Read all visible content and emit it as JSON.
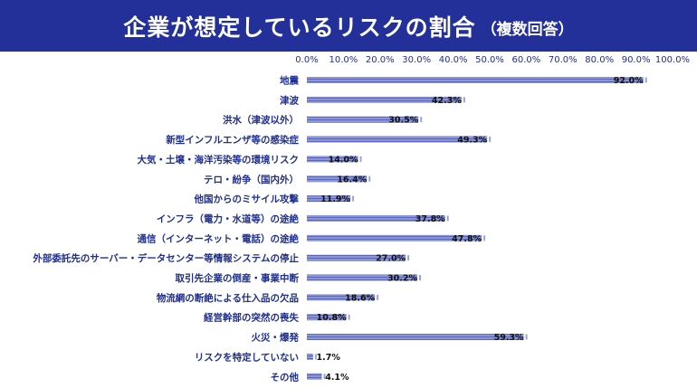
{
  "header": {
    "title": "企業が想定しているリスクの割合",
    "subtitle": "（複数回答）"
  },
  "colors": {
    "banner": "#23309a",
    "bar_fill": "#8a96d9",
    "bar_stripe": "#5b66b8",
    "text": "#1f2f8f"
  },
  "chart_data": {
    "type": "bar",
    "orientation": "horizontal",
    "title": "企業が想定しているリスクの割合",
    "subtitle": "（複数回答）",
    "xlim": [
      0,
      100
    ],
    "x_ticks": [
      "0.0%",
      "10.0%",
      "20.0%",
      "30.0%",
      "40.0%",
      "50.0%",
      "60.0%",
      "70.0%",
      "80.0%",
      "90.0%",
      "100.0%"
    ],
    "grid": false,
    "categories": [
      "地震",
      "津波",
      "洪水（津波以外）",
      "新型インフルエンザ等の感染症",
      "大気・土壌・海洋汚染等の環境リスク",
      "テロ・紛争（国内外）",
      "他国からのミサイル攻撃",
      "インフラ（電力・水道等）の途絶",
      "通信（インターネット・電話）の途絶",
      "外部委託先のサーバー・データセンター等情報システムの停止",
      "取引先企業の倒産・事業中断",
      "物流網の断絶による仕入品の欠品",
      "経営幹部の突然の喪失",
      "火災・爆発",
      "リスクを特定していない",
      "その他"
    ],
    "values": [
      92.0,
      42.3,
      30.5,
      49.3,
      14.0,
      16.4,
      11.9,
      37.8,
      47.8,
      27.0,
      30.2,
      18.6,
      10.8,
      59.3,
      1.7,
      4.1
    ],
    "value_labels": [
      "92.0%",
      "42.3%",
      "30.5%",
      "49.3%",
      "14.0%",
      "16.4%",
      "11.9%",
      "37.8%",
      "47.8%",
      "27.0%",
      "30.2%",
      "18.6%",
      "10.8%",
      "59.3%",
      "1.7%",
      "4.1%"
    ]
  }
}
